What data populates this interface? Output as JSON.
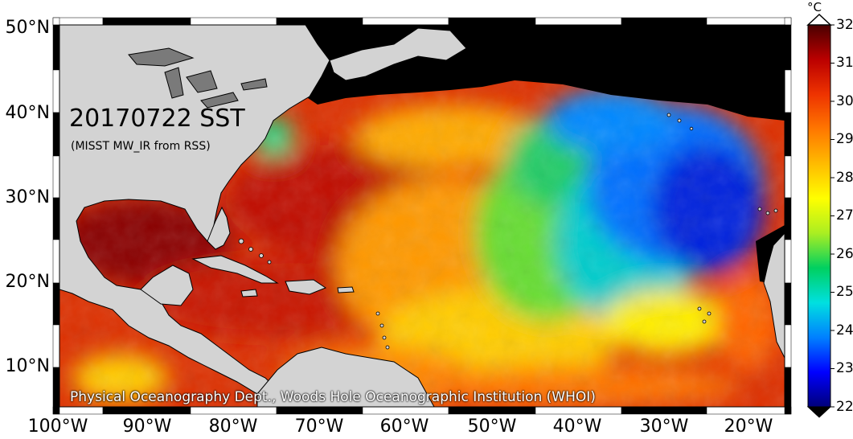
{
  "map": {
    "title": "20170722 SST",
    "subtitle": "(MISST MW_IR from RSS)",
    "credit": "Physical Oceanography Dept., Woods Hole Oceanographic Institution (WHOI)",
    "lat_labels": [
      "50°N",
      "40°N",
      "30°N",
      "20°N",
      "10°N"
    ],
    "lon_labels": [
      "100°W",
      "90°W",
      "80°W",
      "70°W",
      "60°W",
      "50°W",
      "40°W",
      "30°W",
      "20°W"
    ],
    "colors": {
      "land": "#d3d3d3",
      "no_data": "#000000",
      "lakes": "#7a7a7a"
    }
  },
  "colorbar": {
    "unit": "°C",
    "ticks": [
      "32",
      "31",
      "30",
      "29",
      "28",
      "27",
      "26",
      "25",
      "24",
      "23",
      "22"
    ],
    "min": 22,
    "max": 32,
    "stops": [
      "#00007a",
      "#0000ff",
      "#0080ff",
      "#00e0e0",
      "#00d060",
      "#aaee22",
      "#ffff00",
      "#ffbb00",
      "#ff7700",
      "#ee3300",
      "#bb0000",
      "#4a0000"
    ]
  }
}
